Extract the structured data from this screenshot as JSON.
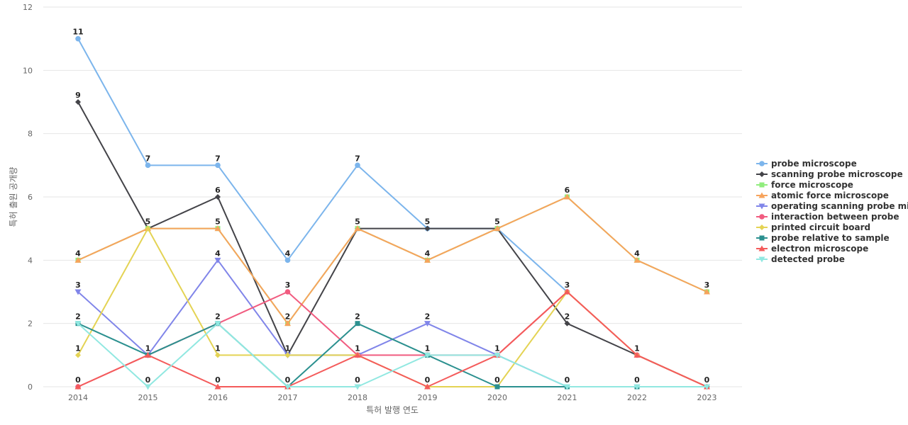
{
  "chart_data": {
    "type": "line",
    "title": "",
    "xlabel": "특허 발행 연도",
    "ylabel": "특허 출원 공개량",
    "x": [
      "2014",
      "2015",
      "2016",
      "2017",
      "2018",
      "2019",
      "2020",
      "2021",
      "2022",
      "2023"
    ],
    "ylim": [
      0,
      12
    ],
    "yticks": [
      "0",
      "2",
      "4",
      "6",
      "8",
      "10",
      "12"
    ],
    "grid": true,
    "legend": "right",
    "series": [
      {
        "name": "probe microscope",
        "color": "#7cb5ec",
        "marker": "circle",
        "values": [
          11,
          7,
          7,
          4,
          7,
          5,
          5,
          3,
          null,
          null
        ]
      },
      {
        "name": "scanning probe microscope",
        "color": "#434348",
        "marker": "diamond",
        "values": [
          9,
          5,
          6,
          1,
          5,
          5,
          5,
          2,
          1,
          0
        ]
      },
      {
        "name": "force microscope",
        "color": "#90ed7d",
        "marker": "square",
        "values": [
          4,
          5,
          5,
          2,
          5,
          4,
          5,
          6,
          4,
          3
        ]
      },
      {
        "name": "atomic force microscope",
        "color": "#f7a35c",
        "marker": "triangle",
        "values": [
          4,
          5,
          5,
          2,
          5,
          4,
          5,
          6,
          4,
          3
        ]
      },
      {
        "name": "operating scanning probe mi...",
        "color": "#8085e9",
        "marker": "triangle-down",
        "values": [
          3,
          1,
          4,
          1,
          1,
          2,
          1,
          0,
          0,
          0
        ]
      },
      {
        "name": "interaction between probe",
        "color": "#f15c80",
        "marker": "circle",
        "values": [
          0,
          1,
          2,
          3,
          1,
          1,
          1,
          3,
          1,
          0
        ]
      },
      {
        "name": "printed circuit board",
        "color": "#e4d354",
        "marker": "diamond",
        "values": [
          1,
          5,
          1,
          1,
          1,
          0,
          0,
          3,
          1,
          0
        ]
      },
      {
        "name": "probe relative to sample",
        "color": "#2b908f",
        "marker": "square",
        "values": [
          2,
          1,
          2,
          0,
          2,
          1,
          0,
          0,
          0,
          0
        ]
      },
      {
        "name": "electron microscope",
        "color": "#f45b5b",
        "marker": "triangle",
        "values": [
          0,
          1,
          0,
          0,
          1,
          0,
          1,
          3,
          1,
          0
        ]
      },
      {
        "name": "detected probe",
        "color": "#91e8e1",
        "marker": "triangle-down",
        "values": [
          2,
          0,
          2,
          0,
          0,
          1,
          1,
          0,
          0,
          0
        ]
      }
    ],
    "data_labels": [
      {
        "x": "2014",
        "values": [
          "11",
          "9",
          "4",
          "3",
          "2",
          "1",
          "0"
        ]
      },
      {
        "x": "2015",
        "values": [
          "7",
          "5",
          "1",
          "0"
        ]
      },
      {
        "x": "2016",
        "values": [
          "7",
          "6",
          "5",
          "4",
          "2",
          "1",
          "0"
        ]
      },
      {
        "x": "2017",
        "values": [
          "4",
          "3",
          "2",
          "1",
          "0"
        ]
      },
      {
        "x": "2018",
        "values": [
          "7",
          "5",
          "2",
          "1",
          "0"
        ]
      },
      {
        "x": "2019",
        "values": [
          "5",
          "4",
          "2",
          "1",
          "0"
        ]
      },
      {
        "x": "2020",
        "values": [
          "5",
          "1",
          "0"
        ]
      },
      {
        "x": "2021",
        "values": [
          "6",
          "3",
          "2",
          "0"
        ]
      },
      {
        "x": "2022",
        "values": [
          "4",
          "1",
          "0"
        ]
      },
      {
        "x": "2023",
        "values": [
          "3",
          "0"
        ]
      }
    ]
  }
}
